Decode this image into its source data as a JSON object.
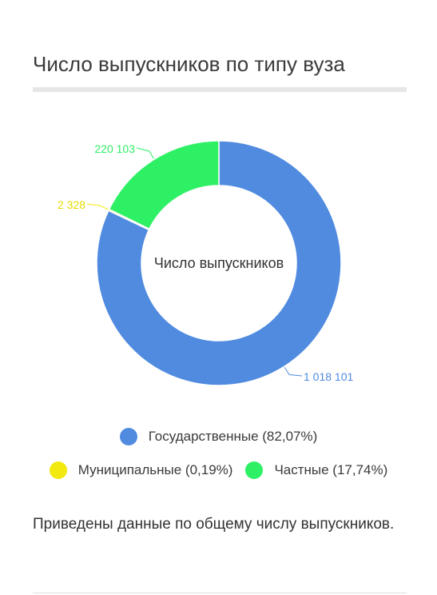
{
  "card": {
    "title": "Число выпускников по типу вуза",
    "note": "Приведены данные по общему числу выпускников."
  },
  "chart_data": {
    "type": "pie",
    "style": "donut",
    "center_label": "Число выпускников",
    "slices": [
      {
        "name": "Государственные",
        "value": 1018101,
        "label": "1 018 101",
        "percent_label": "(82,07%)",
        "color": "#508be0"
      },
      {
        "name": "Муниципальные",
        "value": 2328,
        "label": "2 328",
        "percent_label": "(0,19%)",
        "color": "#f2e90e"
      },
      {
        "name": "Частные",
        "value": 220103,
        "label": "220 103",
        "percent_label": "(17,74%)",
        "color": "#2ef065"
      }
    ],
    "legend_position": "bottom"
  }
}
